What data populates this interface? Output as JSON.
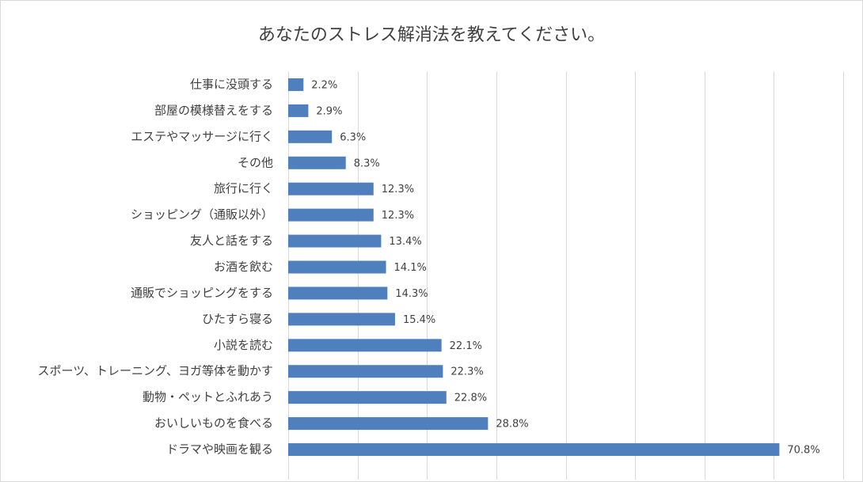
{
  "chart_data": {
    "type": "bar",
    "orientation": "horizontal",
    "title": "あなたのストレス解消法を教えてください。",
    "categories": [
      "仕事に没頭する",
      "部屋の模様替えをする",
      "エステやマッサージに行く",
      "その他",
      "旅行に行く",
      "ショッピング（通販以外）",
      "友人と話をする",
      "お酒を飲む",
      "通販でショッピングをする",
      "ひたすら寝る",
      "小説を読む",
      "スポーツ、トレーニング、ヨガ等体を動かす",
      "動物・ペットとふれあう",
      "おいしいものを食べる",
      "ドラマや映画を観る"
    ],
    "values": [
      2.2,
      2.9,
      6.3,
      8.3,
      12.3,
      12.3,
      13.4,
      14.1,
      14.3,
      15.4,
      22.1,
      22.3,
      22.8,
      28.8,
      70.8
    ],
    "value_labels": [
      "2.2%",
      "2.9%",
      "6.3%",
      "8.3%",
      "12.3%",
      "12.3%",
      "13.4%",
      "14.1%",
      "14.3%",
      "15.4%",
      "22.1%",
      "22.3%",
      "22.8%",
      "28.8%",
      "70.8%"
    ],
    "color": "#4f7fbd",
    "xlim": [
      0,
      80
    ],
    "xticks": [
      0,
      10,
      20,
      30,
      40,
      50,
      60,
      70,
      80
    ],
    "grid": true
  }
}
